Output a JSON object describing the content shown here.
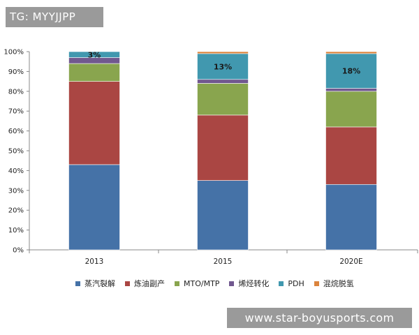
{
  "watermark": {
    "tg_label": "TG: MYYJJPP",
    "site_url": "www.star-boyusports.com"
  },
  "chart_data": {
    "type": "bar",
    "stacked": true,
    "categories": [
      "2013",
      "2015",
      "2020E"
    ],
    "ylim": [
      0,
      100
    ],
    "yticks": [
      "0%",
      "10%",
      "20%",
      "30%",
      "40%",
      "50%",
      "60%",
      "70%",
      "80%",
      "90%",
      "100%"
    ],
    "series": [
      {
        "name": "蒸汽裂解",
        "color": "#4572a7",
        "values": [
          43,
          35,
          33
        ]
      },
      {
        "name": "炼油副产",
        "color": "#aa4643",
        "values": [
          42,
          33,
          29
        ]
      },
      {
        "name": "MTO/MTP",
        "color": "#89a54e",
        "values": [
          9,
          16,
          18
        ]
      },
      {
        "name": "烯烃转化",
        "color": "#71588f",
        "values": [
          3,
          2,
          1.5
        ]
      },
      {
        "name": "PDH",
        "color": "#4198af",
        "values": [
          3,
          13,
          17.5
        ]
      },
      {
        "name": "混烷脱氢",
        "color": "#db843d",
        "values": [
          0,
          1,
          1
        ]
      }
    ],
    "annotations": [
      {
        "category": "2013",
        "series": "PDH",
        "text": "3%"
      },
      {
        "category": "2015",
        "series": "PDH",
        "text": "13%"
      },
      {
        "category": "2020E",
        "series": "PDH",
        "text": "18%"
      }
    ],
    "legend_position": "bottom",
    "title": "",
    "xlabel": "",
    "ylabel": ""
  }
}
